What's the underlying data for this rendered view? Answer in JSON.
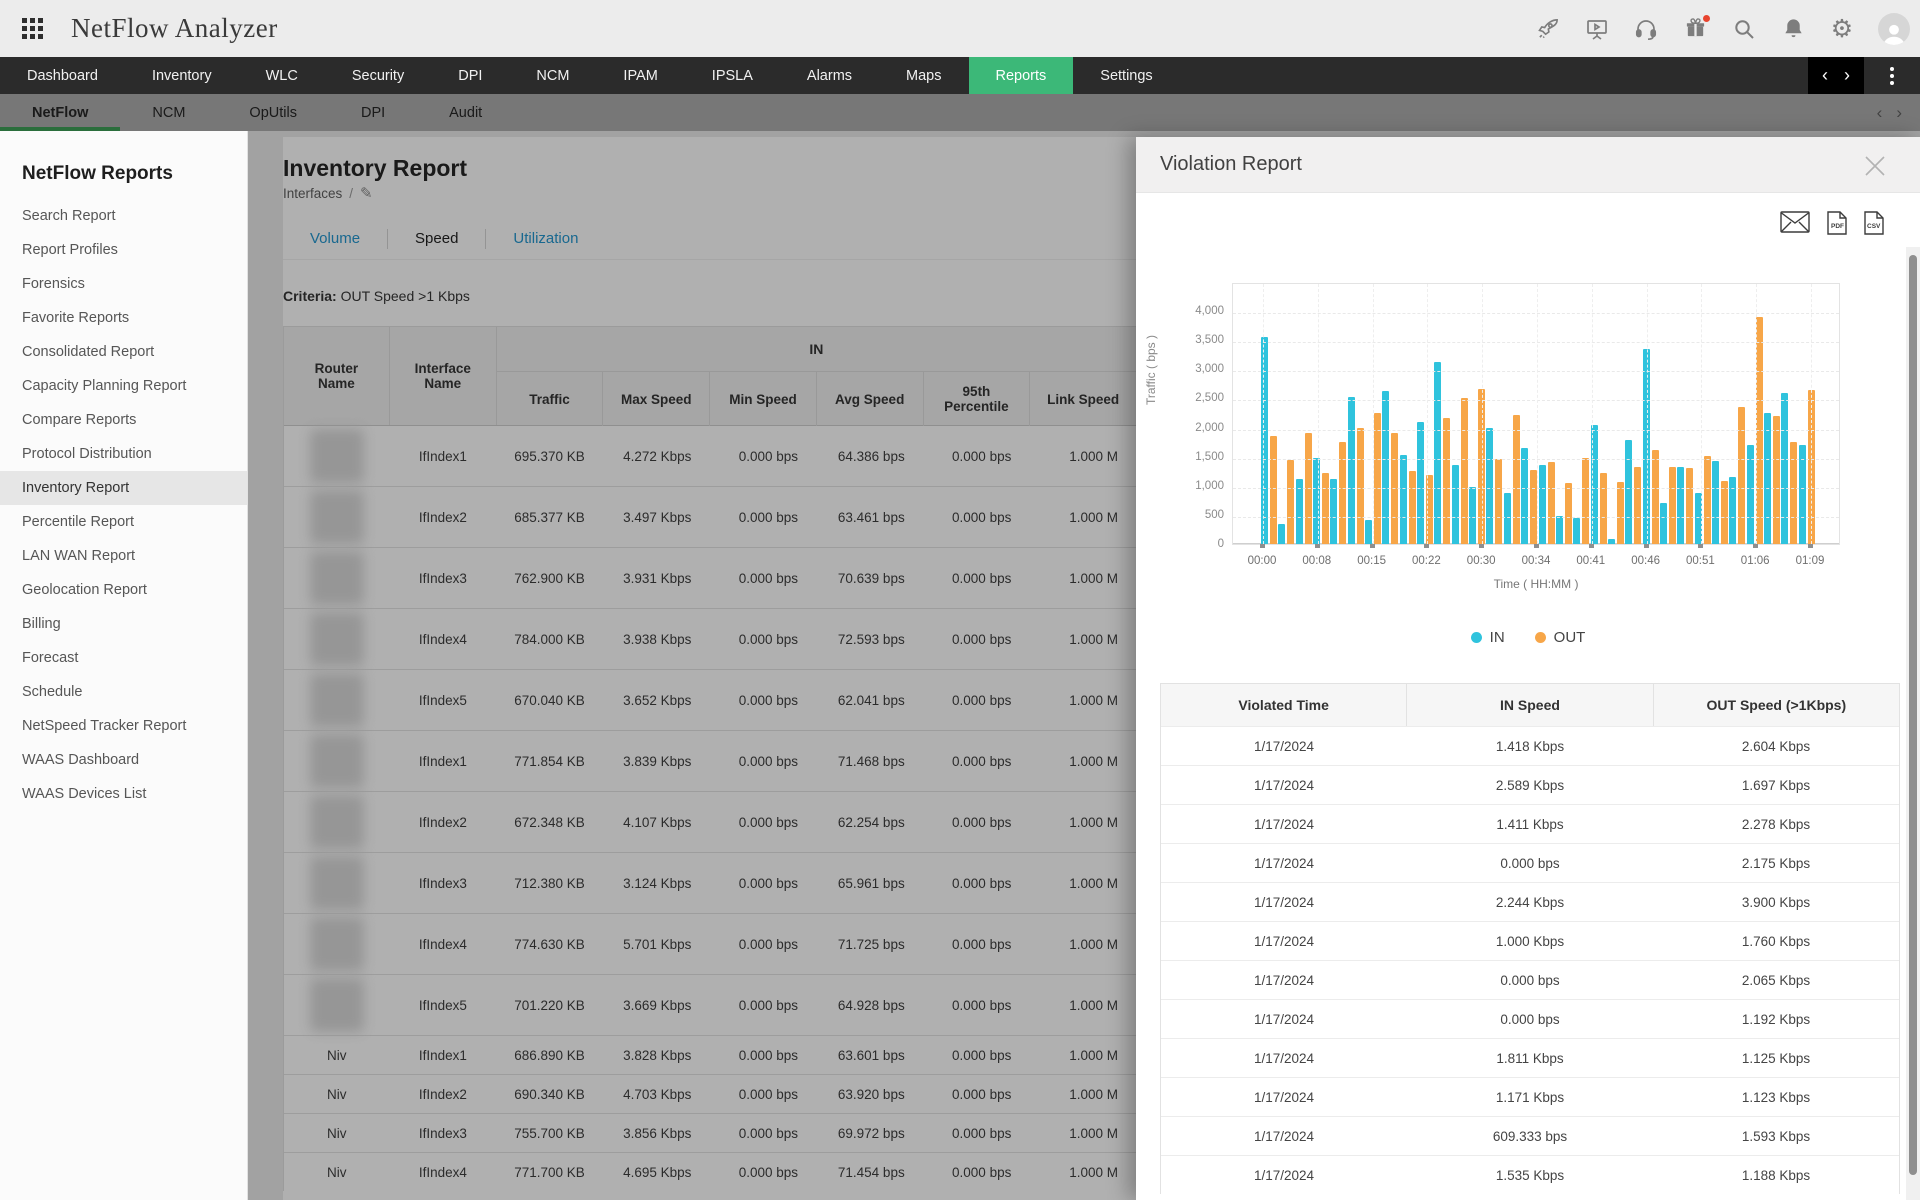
{
  "topbar": {
    "title": "NetFlow Analyzer",
    "icon_names": [
      "apps-grid-icon",
      "rocket-icon",
      "presentation-icon",
      "headset-icon",
      "gift-icon",
      "search-icon",
      "bell-icon",
      "gear-icon",
      "avatar"
    ]
  },
  "navbar": {
    "tabs": [
      "Dashboard",
      "Inventory",
      "WLC",
      "Security",
      "DPI",
      "NCM",
      "IPAM",
      "IPSLA",
      "Alarms",
      "Maps",
      "Reports",
      "Settings"
    ],
    "active": "Reports"
  },
  "subtabs": {
    "tabs": [
      "NetFlow",
      "NCM",
      "OpUtils",
      "DPI",
      "Audit"
    ],
    "active": "NetFlow"
  },
  "sidebar": {
    "title": "NetFlow Reports",
    "active": "Inventory Report",
    "items": [
      "Search Report",
      "Report Profiles",
      "Forensics",
      "Favorite Reports",
      "Consolidated Report",
      "Capacity Planning Report",
      "Compare Reports",
      "Protocol Distribution",
      "Inventory Report",
      "Percentile Report",
      "LAN WAN Report",
      "Geolocation Report",
      "Billing",
      "Forecast",
      "Schedule",
      "NetSpeed Tracker Report",
      "WAAS Dashboard",
      "WAAS Devices List"
    ]
  },
  "report": {
    "title": "Inventory Report",
    "breadcrumb": "Interfaces",
    "breadcrumb_sep": "/",
    "tabs": [
      "Volume",
      "Speed",
      "Utilization"
    ],
    "active_tab": "Speed",
    "criteria_label": "Criteria:",
    "criteria_value": "OUT Speed >1 Kbps",
    "table": {
      "group_header": "IN",
      "fixed_columns": [
        "Router Name",
        "Interface Name"
      ],
      "in_columns": [
        "Traffic",
        "Max Speed",
        "Min Speed",
        "Avg Speed",
        "95th Percentile",
        "Link Speed"
      ],
      "rows": [
        {
          "router": "",
          "blurred": true,
          "iface": "IfIndex1",
          "traffic": "695.370 KB",
          "max": "4.272 Kbps",
          "min": "0.000 bps",
          "avg": "64.386 bps",
          "p95": "0.000 bps",
          "link": "1.000 M"
        },
        {
          "router": "",
          "blurred": true,
          "iface": "IfIndex2",
          "traffic": "685.377 KB",
          "max": "3.497 Kbps",
          "min": "0.000 bps",
          "avg": "63.461 bps",
          "p95": "0.000 bps",
          "link": "1.000 M"
        },
        {
          "router": "",
          "blurred": true,
          "iface": "IfIndex3",
          "traffic": "762.900 KB",
          "max": "3.931 Kbps",
          "min": "0.000 bps",
          "avg": "70.639 bps",
          "p95": "0.000 bps",
          "link": "1.000 M"
        },
        {
          "router": "",
          "blurred": true,
          "iface": "IfIndex4",
          "traffic": "784.000 KB",
          "max": "3.938 Kbps",
          "min": "0.000 bps",
          "avg": "72.593 bps",
          "p95": "0.000 bps",
          "link": "1.000 M"
        },
        {
          "router": "",
          "blurred": true,
          "iface": "IfIndex5",
          "traffic": "670.040 KB",
          "max": "3.652 Kbps",
          "min": "0.000 bps",
          "avg": "62.041 bps",
          "p95": "0.000 bps",
          "link": "1.000 M"
        },
        {
          "router": "",
          "blurred": true,
          "iface": "IfIndex1",
          "traffic": "771.854 KB",
          "max": "3.839 Kbps",
          "min": "0.000 bps",
          "avg": "71.468 bps",
          "p95": "0.000 bps",
          "link": "1.000 M"
        },
        {
          "router": "",
          "blurred": true,
          "iface": "IfIndex2",
          "traffic": "672.348 KB",
          "max": "4.107 Kbps",
          "min": "0.000 bps",
          "avg": "62.254 bps",
          "p95": "0.000 bps",
          "link": "1.000 M"
        },
        {
          "router": "",
          "blurred": true,
          "iface": "IfIndex3",
          "traffic": "712.380 KB",
          "max": "3.124 Kbps",
          "min": "0.000 bps",
          "avg": "65.961 bps",
          "p95": "0.000 bps",
          "link": "1.000 M"
        },
        {
          "router": "",
          "blurred": true,
          "iface": "IfIndex4",
          "traffic": "774.630 KB",
          "max": "5.701 Kbps",
          "min": "0.000 bps",
          "avg": "71.725 bps",
          "p95": "0.000 bps",
          "link": "1.000 M"
        },
        {
          "router": "",
          "blurred": true,
          "iface": "IfIndex5",
          "traffic": "701.220 KB",
          "max": "3.669 Kbps",
          "min": "0.000 bps",
          "avg": "64.928 bps",
          "p95": "0.000 bps",
          "link": "1.000 M"
        },
        {
          "router": "Niv",
          "blurred": false,
          "iface": "IfIndex1",
          "traffic": "686.890 KB",
          "max": "3.828 Kbps",
          "min": "0.000 bps",
          "avg": "63.601 bps",
          "p95": "0.000 bps",
          "link": "1.000 M"
        },
        {
          "router": "Niv",
          "blurred": false,
          "iface": "IfIndex2",
          "traffic": "690.340 KB",
          "max": "4.703 Kbps",
          "min": "0.000 bps",
          "avg": "63.920 bps",
          "p95": "0.000 bps",
          "link": "1.000 M"
        },
        {
          "router": "Niv",
          "blurred": false,
          "iface": "IfIndex3",
          "traffic": "755.700 KB",
          "max": "3.856 Kbps",
          "min": "0.000 bps",
          "avg": "69.972 bps",
          "p95": "0.000 bps",
          "link": "1.000 M"
        },
        {
          "router": "Niv",
          "blurred": false,
          "iface": "IfIndex4",
          "traffic": "771.700 KB",
          "max": "4.695 Kbps",
          "min": "0.000 bps",
          "avg": "71.454 bps",
          "p95": "0.000 bps",
          "link": "1.000 M"
        }
      ]
    }
  },
  "panel": {
    "title": "Violation Report",
    "export_icon_names": [
      "email-icon",
      "pdf-export-icon",
      "csv-export-icon"
    ],
    "table": {
      "columns": [
        "Violated Time",
        "IN Speed",
        "OUT Speed (>1Kbps)"
      ],
      "rows": [
        [
          "1/17/2024",
          "1.418 Kbps",
          "2.604 Kbps"
        ],
        [
          "1/17/2024",
          "2.589 Kbps",
          "1.697 Kbps"
        ],
        [
          "1/17/2024",
          "1.411 Kbps",
          "2.278 Kbps"
        ],
        [
          "1/17/2024",
          "0.000 bps",
          "2.175 Kbps"
        ],
        [
          "1/17/2024",
          "2.244 Kbps",
          "3.900 Kbps"
        ],
        [
          "1/17/2024",
          "1.000 Kbps",
          "1.760 Kbps"
        ],
        [
          "1/17/2024",
          "0.000 bps",
          "2.065 Kbps"
        ],
        [
          "1/17/2024",
          "0.000 bps",
          "1.192 Kbps"
        ],
        [
          "1/17/2024",
          "1.811 Kbps",
          "1.125 Kbps"
        ],
        [
          "1/17/2024",
          "1.171 Kbps",
          "1.123 Kbps"
        ],
        [
          "1/17/2024",
          "609.333 bps",
          "1.593 Kbps"
        ],
        [
          "1/17/2024",
          "1.535 Kbps",
          "1.188 Kbps"
        ]
      ]
    }
  },
  "chart_data": {
    "type": "bar",
    "title": "",
    "xlabel": "Time ( HH:MM )",
    "ylabel": "Traffic ( bps )",
    "ylim": [
      0,
      4500
    ],
    "grid": true,
    "legend_position": "bottom",
    "y_tick_values": [
      0,
      500,
      1000,
      1500,
      2000,
      2500,
      3000,
      3500,
      4000
    ],
    "y_tick_labels": [
      "0",
      "500",
      "1,000",
      "1,500",
      "2,000",
      "2,500",
      "3,000",
      "3,500",
      "4,000"
    ],
    "x_ticks": [
      "00:00",
      "00:08",
      "00:15",
      "00:22",
      "00:30",
      "00:34",
      "00:41",
      "00:46",
      "00:51",
      "01:06",
      "01:09"
    ],
    "series": [
      {
        "name": "IN",
        "color": "#2fc3dd",
        "values": [
          3560,
          350,
          1110,
          1480,
          1110,
          2520,
          420,
          2630,
          1530,
          2090,
          3120,
          1350,
          980,
          1990,
          870,
          1650,
          1350,
          480,
          440,
          2040,
          90,
          1790,
          3350,
          700,
          1330,
          880,
          1420,
          1150,
          1700,
          2250,
          2600,
          1700
        ]
      },
      {
        "name": "OUT",
        "color": "#f7a648",
        "values": [
          1860,
          1450,
          1910,
          1220,
          1750,
          1990,
          2250,
          1910,
          1250,
          1190,
          2160,
          2500,
          2660,
          1460,
          2210,
          1270,
          1410,
          1040,
          1470,
          1220,
          1060,
          1320,
          1620,
          1320,
          1300,
          1520,
          1080,
          2350,
          3900,
          2200,
          1750,
          2650
        ]
      }
    ]
  }
}
